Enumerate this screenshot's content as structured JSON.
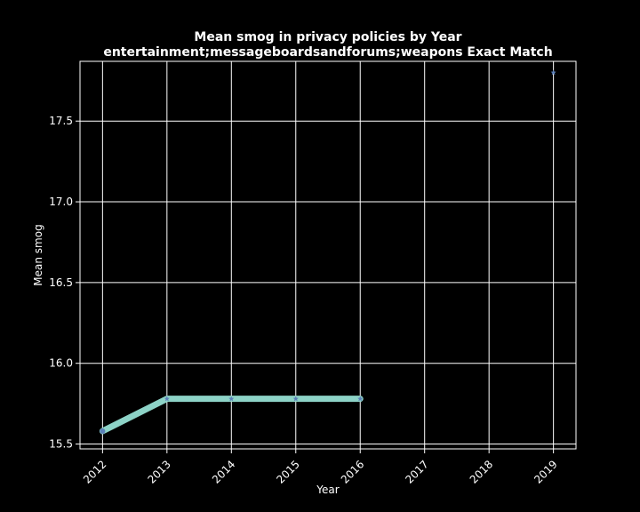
{
  "chart_data": {
    "type": "line",
    "title": "Mean smog in privacy policies by Year",
    "subtitle": "entertainment;messageboardsandforums;weapons Exact Match",
    "xlabel": "Year",
    "ylabel": "Mean smog",
    "x_ticks": [
      "2012",
      "2013",
      "2014",
      "2015",
      "2016",
      "2017",
      "2018",
      "2019"
    ],
    "y_ticks": [
      "15.5",
      "16.0",
      "16.5",
      "17.0",
      "17.5"
    ],
    "xlim": [
      2011.65,
      2019.35
    ],
    "ylim": [
      15.47,
      17.87
    ],
    "grid": true,
    "series": [
      {
        "x": [
          2012,
          2013,
          2014,
          2015,
          2016
        ],
        "y": [
          15.58,
          15.78,
          15.78,
          15.78,
          15.78
        ],
        "line_color": "#8dd3c7",
        "marker_color": "#5b7fb8"
      },
      {
        "x": [
          2019
        ],
        "y": [
          17.8
        ],
        "marker_only": true,
        "marker_color": "#5b7fb8"
      }
    ],
    "colors": {
      "background": "#000000",
      "foreground": "#ffffff",
      "grid": "#ffffff"
    }
  }
}
